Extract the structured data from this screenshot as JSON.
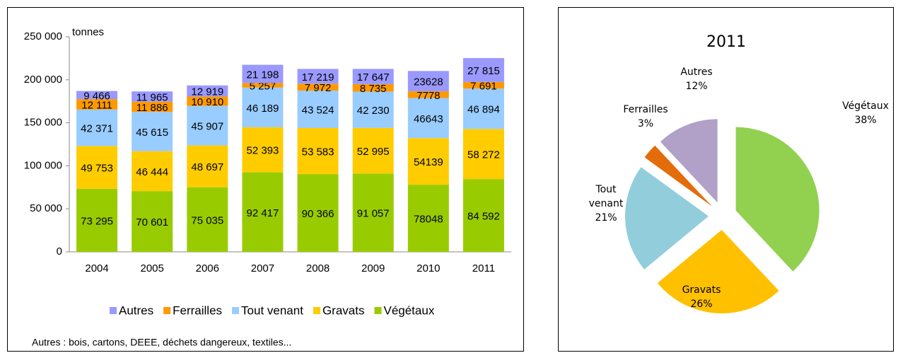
{
  "chart_data": [
    {
      "type": "stacked-bar",
      "categories": [
        "2004",
        "2005",
        "2006",
        "2007",
        "2008",
        "2009",
        "2010",
        "2011"
      ],
      "ylabel": "tonnes",
      "ylim": [
        0,
        250000
      ],
      "yticks": [
        0,
        {
          "value": 50000,
          "label": "50 000"
        },
        {
          "value": 100000,
          "label": "100 000"
        },
        {
          "value": 150000,
          "label": "150 000"
        },
        {
          "value": 200000,
          "label": "200 000"
        },
        {
          "value": 250000,
          "label": "250 000"
        }
      ],
      "series": [
        {
          "name": "Végétaux",
          "color": "#99cc00",
          "values": [
            73295,
            70601,
            75035,
            92417,
            90366,
            91057,
            78048,
            84592
          ],
          "value_labels": [
            "73 295",
            "70 601",
            "75 035",
            "92 417",
            "90 366",
            "91 057",
            "78048",
            "84 592"
          ]
        },
        {
          "name": "Gravats",
          "color": "#ffcc00",
          "values": [
            49753,
            46444,
            48697,
            52393,
            53583,
            52995,
            54139,
            58272
          ],
          "value_labels": [
            "49 753",
            "46 444",
            "48 697",
            "52 393",
            "53 583",
            "52 995",
            "54139",
            "58 272"
          ]
        },
        {
          "name": "Tout venant",
          "color": "#99ccff",
          "values": [
            42371,
            45615,
            45907,
            46189,
            43524,
            42230,
            46643,
            46894
          ],
          "value_labels": [
            "42 371",
            "45 615",
            "45 907",
            "46 189",
            "43 524",
            "42 230",
            "46643",
            "46 894"
          ]
        },
        {
          "name": "Ferrailles",
          "color": "#ff9900",
          "values": [
            12111,
            11886,
            10910,
            5257,
            7972,
            8735,
            7778,
            7691
          ],
          "value_labels": [
            "12 111",
            "11 886",
            "10 910",
            "5 257",
            "7 972",
            "8 735",
            "7778",
            "7 691"
          ]
        },
        {
          "name": "Autres",
          "color": "#9999ff",
          "values": [
            9466,
            11965,
            12919,
            21198,
            17219,
            17647,
            23628,
            27815
          ],
          "value_labels": [
            "9 466",
            "11 965",
            "12 919",
            "21 198",
            "17 219",
            "17 647",
            "23628",
            "27 815"
          ]
        }
      ],
      "note": "Autres : bois, cartons, DEEE, déchets dangereux, textiles..."
    },
    {
      "type": "pie",
      "title": "2011",
      "categories": [
        "Végétaux",
        "Gravats",
        "Tout venant",
        "Ferrailles",
        "Autres"
      ],
      "values": [
        38,
        26,
        21,
        3,
        12
      ],
      "value_labels": [
        "38%",
        "26%",
        "21%",
        "3%",
        "12%"
      ],
      "colors": [
        "#92d050",
        "#ffc000",
        "#92cddc",
        "#e46c0a",
        "#b1a0c7"
      ]
    }
  ]
}
